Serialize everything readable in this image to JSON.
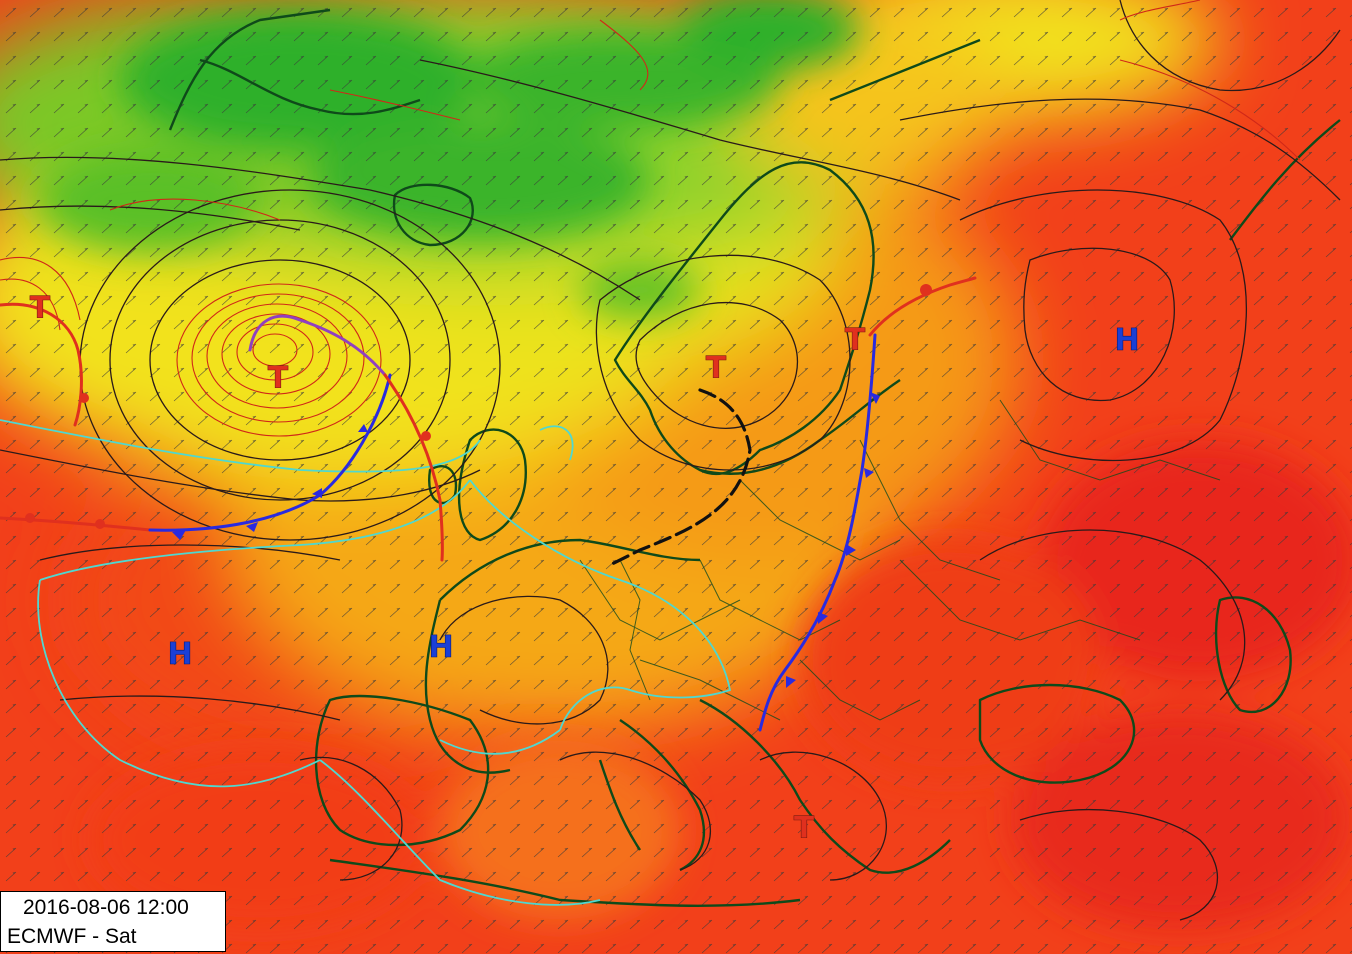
{
  "map": {
    "info_box": {
      "datetime": "2016-08-06 12:00",
      "source": "ECMWF - Sat"
    },
    "pressure_centers": [
      {
        "label": "T",
        "kind": "low",
        "color": "#e0301e"
      },
      {
        "label": "T",
        "kind": "low",
        "color": "#e0301e"
      },
      {
        "label": "T",
        "kind": "low",
        "color": "#e0301e"
      },
      {
        "label": "T",
        "kind": "low",
        "color": "#e0301e"
      },
      {
        "label": "T",
        "kind": "low",
        "color": "#e0301e"
      },
      {
        "label": "H",
        "kind": "high",
        "color": "#1a3fd6"
      },
      {
        "label": "H",
        "kind": "high",
        "color": "#1a3fd6"
      },
      {
        "label": "H",
        "kind": "high",
        "color": "#1a3fd6"
      }
    ],
    "fronts": {
      "warm_color": "#e0301e",
      "cold_color": "#2a2ae0",
      "occluded_color": "#9040c0",
      "trough_color": "#111111"
    },
    "field_colors": {
      "cold": "#2fb02a",
      "cool": "#8fd22a",
      "mild": "#f2e21c",
      "warm": "#f59a12",
      "hot": "#f2401a",
      "coast": "#0f4a1a",
      "isotherm": "#4fd8d0"
    }
  }
}
